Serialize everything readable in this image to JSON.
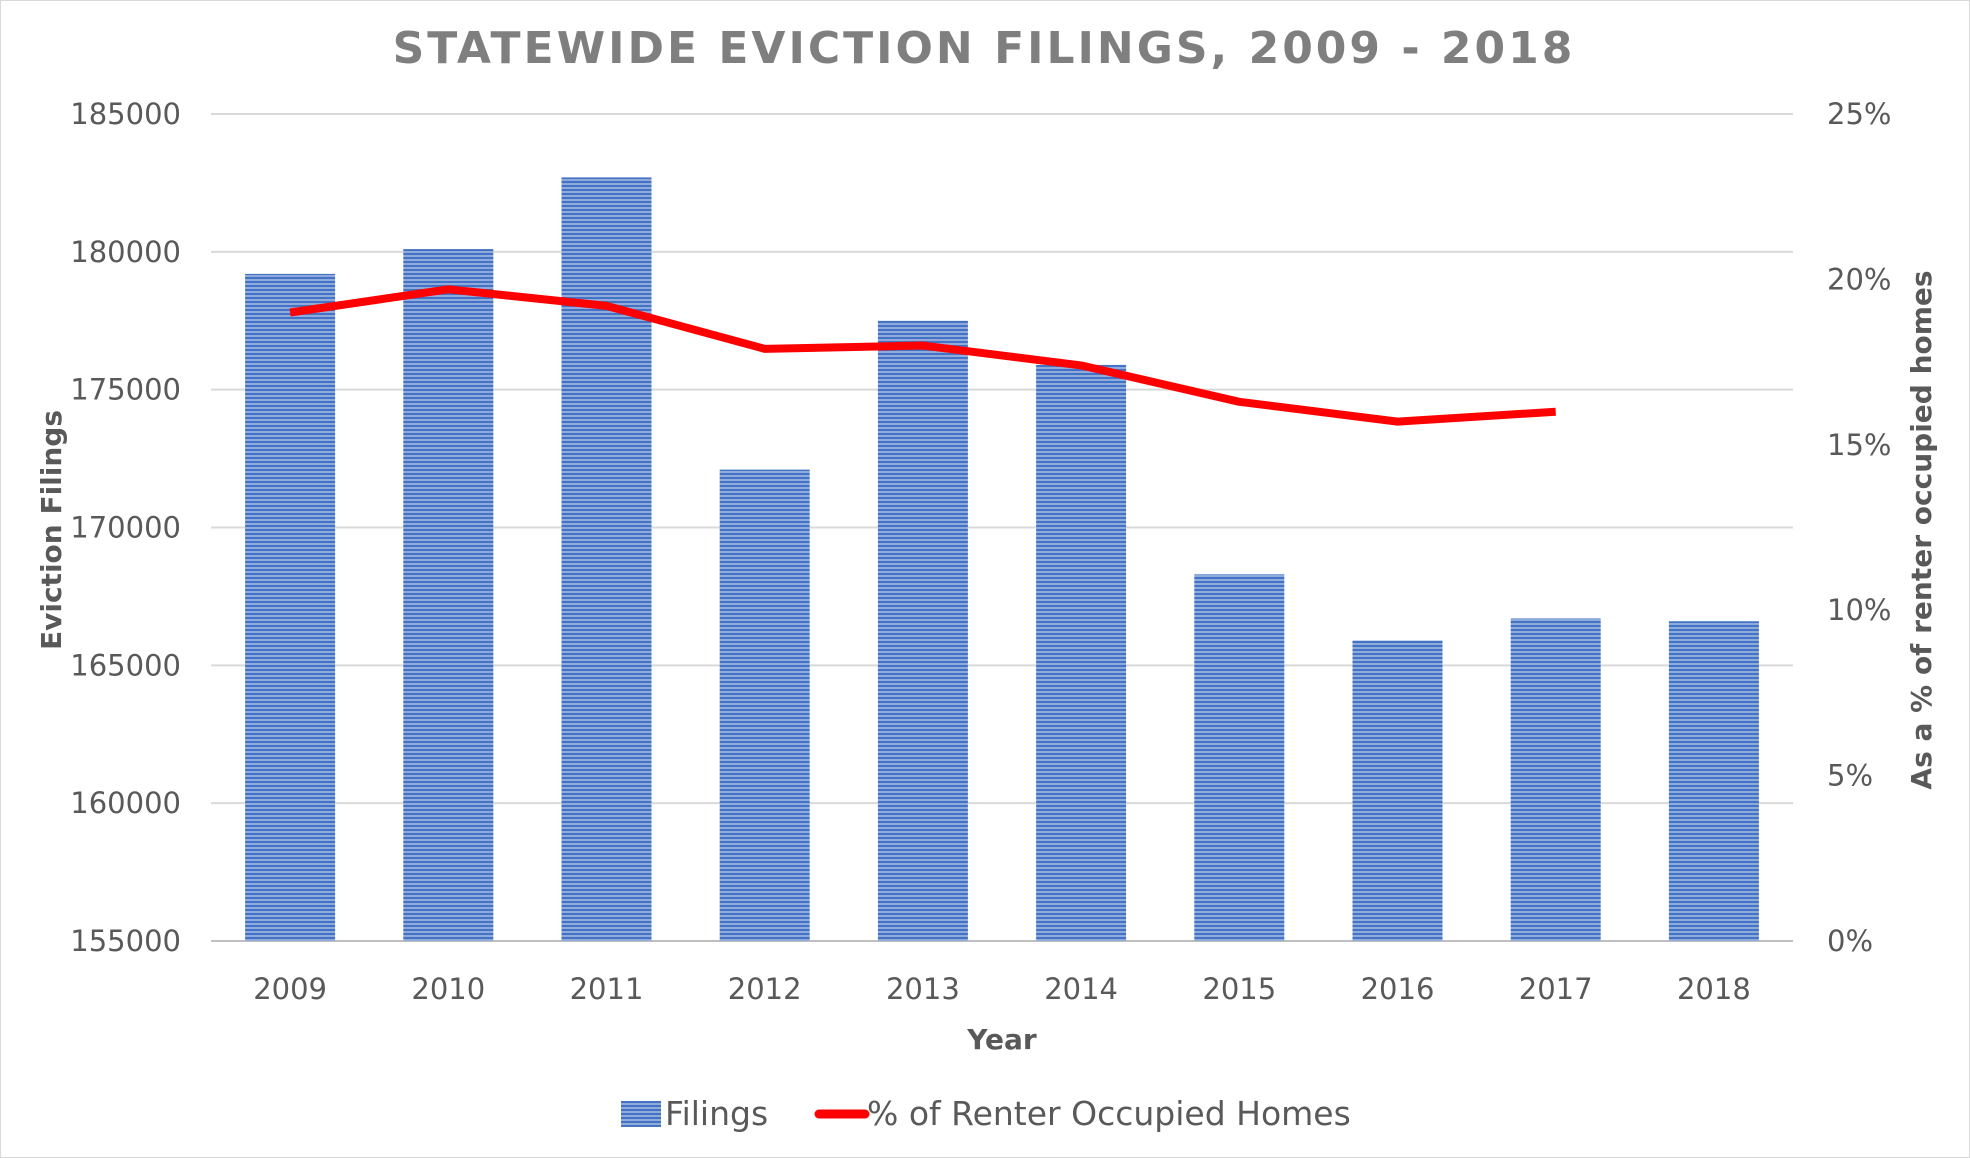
{
  "chart_data": {
    "type": "bar",
    "title": "STATEWIDE EVICTION FILINGS, 2009 - 2018",
    "xlabel": "Year",
    "ylabel": "Eviction Filings",
    "y2label": "As a % of renter occupied homes",
    "categories": [
      "2009",
      "2010",
      "2011",
      "2012",
      "2013",
      "2014",
      "2015",
      "2016",
      "2017",
      "2018"
    ],
    "ylim": [
      155000,
      185000
    ],
    "yticks": [
      155000,
      160000,
      165000,
      170000,
      175000,
      180000,
      185000
    ],
    "y2lim": [
      0,
      25
    ],
    "y2ticks": [
      0,
      5,
      10,
      15,
      20,
      25
    ],
    "y2tick_labels": [
      "0%",
      "5%",
      "10%",
      "15%",
      "20%",
      "25%"
    ],
    "grid": true,
    "legend_position": "bottom",
    "series": [
      {
        "name": "Filings",
        "type": "bar",
        "axis": "left",
        "color": "#4472c4",
        "values": [
          179200,
          180100,
          182700,
          172100,
          177500,
          175900,
          168300,
          165900,
          166700,
          166600
        ]
      },
      {
        "name": "% of Renter Occupied Homes",
        "type": "line",
        "axis": "right",
        "color": "#ff0000",
        "values": [
          19.0,
          19.7,
          19.2,
          17.9,
          18.0,
          17.4,
          16.3,
          15.7,
          16.0,
          null
        ]
      }
    ]
  }
}
